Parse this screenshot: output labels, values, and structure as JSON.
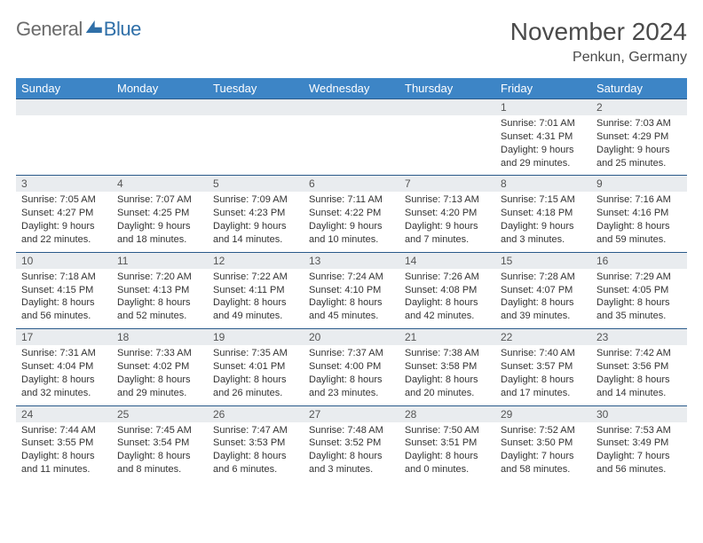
{
  "logo": {
    "text1": "General",
    "text2": "Blue"
  },
  "title": "November 2024",
  "location": "Penkun, Germany",
  "colors": {
    "header_bg": "#3d85c6",
    "header_text": "#ffffff",
    "row_border": "#2a5a8a",
    "daynum_bg": "#e9ecef",
    "body_text": "#333333",
    "brand_blue": "#2f6fa8",
    "brand_grey": "#6b6b6b"
  },
  "day_names": [
    "Sunday",
    "Monday",
    "Tuesday",
    "Wednesday",
    "Thursday",
    "Friday",
    "Saturday"
  ],
  "weeks": [
    [
      null,
      null,
      null,
      null,
      null,
      {
        "n": "1",
        "sunrise": "7:01 AM",
        "sunset": "4:31 PM",
        "daylight": "9 hours and 29 minutes."
      },
      {
        "n": "2",
        "sunrise": "7:03 AM",
        "sunset": "4:29 PM",
        "daylight": "9 hours and 25 minutes."
      }
    ],
    [
      {
        "n": "3",
        "sunrise": "7:05 AM",
        "sunset": "4:27 PM",
        "daylight": "9 hours and 22 minutes."
      },
      {
        "n": "4",
        "sunrise": "7:07 AM",
        "sunset": "4:25 PM",
        "daylight": "9 hours and 18 minutes."
      },
      {
        "n": "5",
        "sunrise": "7:09 AM",
        "sunset": "4:23 PM",
        "daylight": "9 hours and 14 minutes."
      },
      {
        "n": "6",
        "sunrise": "7:11 AM",
        "sunset": "4:22 PM",
        "daylight": "9 hours and 10 minutes."
      },
      {
        "n": "7",
        "sunrise": "7:13 AM",
        "sunset": "4:20 PM",
        "daylight": "9 hours and 7 minutes."
      },
      {
        "n": "8",
        "sunrise": "7:15 AM",
        "sunset": "4:18 PM",
        "daylight": "9 hours and 3 minutes."
      },
      {
        "n": "9",
        "sunrise": "7:16 AM",
        "sunset": "4:16 PM",
        "daylight": "8 hours and 59 minutes."
      }
    ],
    [
      {
        "n": "10",
        "sunrise": "7:18 AM",
        "sunset": "4:15 PM",
        "daylight": "8 hours and 56 minutes."
      },
      {
        "n": "11",
        "sunrise": "7:20 AM",
        "sunset": "4:13 PM",
        "daylight": "8 hours and 52 minutes."
      },
      {
        "n": "12",
        "sunrise": "7:22 AM",
        "sunset": "4:11 PM",
        "daylight": "8 hours and 49 minutes."
      },
      {
        "n": "13",
        "sunrise": "7:24 AM",
        "sunset": "4:10 PM",
        "daylight": "8 hours and 45 minutes."
      },
      {
        "n": "14",
        "sunrise": "7:26 AM",
        "sunset": "4:08 PM",
        "daylight": "8 hours and 42 minutes."
      },
      {
        "n": "15",
        "sunrise": "7:28 AM",
        "sunset": "4:07 PM",
        "daylight": "8 hours and 39 minutes."
      },
      {
        "n": "16",
        "sunrise": "7:29 AM",
        "sunset": "4:05 PM",
        "daylight": "8 hours and 35 minutes."
      }
    ],
    [
      {
        "n": "17",
        "sunrise": "7:31 AM",
        "sunset": "4:04 PM",
        "daylight": "8 hours and 32 minutes."
      },
      {
        "n": "18",
        "sunrise": "7:33 AM",
        "sunset": "4:02 PM",
        "daylight": "8 hours and 29 minutes."
      },
      {
        "n": "19",
        "sunrise": "7:35 AM",
        "sunset": "4:01 PM",
        "daylight": "8 hours and 26 minutes."
      },
      {
        "n": "20",
        "sunrise": "7:37 AM",
        "sunset": "4:00 PM",
        "daylight": "8 hours and 23 minutes."
      },
      {
        "n": "21",
        "sunrise": "7:38 AM",
        "sunset": "3:58 PM",
        "daylight": "8 hours and 20 minutes."
      },
      {
        "n": "22",
        "sunrise": "7:40 AM",
        "sunset": "3:57 PM",
        "daylight": "8 hours and 17 minutes."
      },
      {
        "n": "23",
        "sunrise": "7:42 AM",
        "sunset": "3:56 PM",
        "daylight": "8 hours and 14 minutes."
      }
    ],
    [
      {
        "n": "24",
        "sunrise": "7:44 AM",
        "sunset": "3:55 PM",
        "daylight": "8 hours and 11 minutes."
      },
      {
        "n": "25",
        "sunrise": "7:45 AM",
        "sunset": "3:54 PM",
        "daylight": "8 hours and 8 minutes."
      },
      {
        "n": "26",
        "sunrise": "7:47 AM",
        "sunset": "3:53 PM",
        "daylight": "8 hours and 6 minutes."
      },
      {
        "n": "27",
        "sunrise": "7:48 AM",
        "sunset": "3:52 PM",
        "daylight": "8 hours and 3 minutes."
      },
      {
        "n": "28",
        "sunrise": "7:50 AM",
        "sunset": "3:51 PM",
        "daylight": "8 hours and 0 minutes."
      },
      {
        "n": "29",
        "sunrise": "7:52 AM",
        "sunset": "3:50 PM",
        "daylight": "7 hours and 58 minutes."
      },
      {
        "n": "30",
        "sunrise": "7:53 AM",
        "sunset": "3:49 PM",
        "daylight": "7 hours and 56 minutes."
      }
    ]
  ],
  "labels": {
    "sunrise": "Sunrise:",
    "sunset": "Sunset:",
    "daylight": "Daylight:"
  }
}
